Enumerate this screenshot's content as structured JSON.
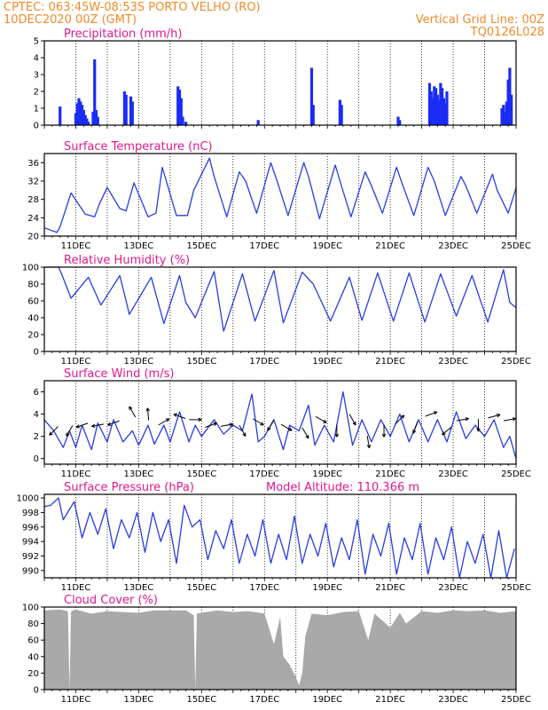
{
  "header": {
    "left_line1": "CPTEC:   063:45W-08:53S   PORTO VELHO (RO)",
    "left_line2": "10DEC2020 00Z (GMT)",
    "right_line1": "Vertical Grid Line: 00Z",
    "right_line2": "TQ0126L028"
  },
  "colors": {
    "header_text": "#f08a28",
    "panel_title": "#e0188c",
    "series_line": "#2a3ce0",
    "precip_bar": "#1a2cf5",
    "cloud_fill": "#a9a9a9",
    "wind_arrow": "#000000"
  },
  "chart_data": [
    {
      "type": "bar",
      "title": "Precipitation (mm/h)",
      "xlabel": "",
      "ylabel": "",
      "x_unit": "days since 10DEC2020 00Z",
      "xlim": [
        0,
        15
      ],
      "ylim": [
        0,
        5
      ],
      "yticks": [
        0,
        1,
        2,
        3,
        4,
        5
      ],
      "xtick_labels": [
        "11DEC",
        "13DEC",
        "15DEC",
        "17DEC",
        "19DEC",
        "21DEC",
        "23DEC",
        "25DEC"
      ],
      "x": [
        0.5,
        1.0,
        1.05,
        1.1,
        1.15,
        1.2,
        1.25,
        1.3,
        1.35,
        1.4,
        1.55,
        1.6,
        1.65,
        1.7,
        2.55,
        2.6,
        2.75,
        2.8,
        4.25,
        4.3,
        4.35,
        4.4,
        4.5,
        6.8,
        8.5,
        8.55,
        9.4,
        9.45,
        11.25,
        11.3,
        12.25,
        12.3,
        12.35,
        12.4,
        12.45,
        12.5,
        12.55,
        12.6,
        12.65,
        12.7,
        12.75,
        12.8,
        14.55,
        14.6,
        14.65,
        14.7,
        14.75,
        14.8,
        14.85
      ],
      "values": [
        1.1,
        0.7,
        1.3,
        1.6,
        1.4,
        1.2,
        0.9,
        0.6,
        0.4,
        0.2,
        0.8,
        3.9,
        0.9,
        0.5,
        2.0,
        1.8,
        1.7,
        1.4,
        2.3,
        2.1,
        1.6,
        0.5,
        0.2,
        0.3,
        3.4,
        1.2,
        1.5,
        1.2,
        0.5,
        0.3,
        2.5,
        2.0,
        1.6,
        2.3,
        2.2,
        1.8,
        1.5,
        2.5,
        2.2,
        1.6,
        1.3,
        2.0,
        1.0,
        1.2,
        0.8,
        1.4,
        2.7,
        3.4,
        1.8
      ]
    },
    {
      "type": "line",
      "title": "Surface Temperature (nC)",
      "xlabel": "",
      "ylabel": "",
      "x_unit": "days since 10DEC2020 00Z",
      "xlim": [
        0,
        15
      ],
      "ylim": [
        20,
        38
      ],
      "yticks": [
        20,
        24,
        28,
        32,
        36
      ],
      "xtick_labels": [
        "11DEC",
        "13DEC",
        "15DEC",
        "17DEC",
        "19DEC",
        "21DEC",
        "23DEC",
        "25DEC"
      ],
      "x": [
        0.0,
        0.4,
        0.5,
        0.85,
        1.3,
        1.6,
        1.75,
        2.0,
        2.4,
        2.6,
        2.85,
        3.3,
        3.55,
        3.75,
        4.2,
        4.55,
        4.75,
        5.25,
        5.4,
        5.8,
        6.2,
        6.4,
        6.75,
        7.2,
        7.4,
        7.75,
        8.25,
        8.4,
        8.75,
        9.25,
        9.4,
        9.75,
        10.2,
        10.4,
        10.75,
        11.2,
        11.4,
        11.75,
        12.2,
        12.4,
        12.75,
        13.25,
        13.4,
        13.75,
        14.25,
        14.4,
        14.75,
        15.0
      ],
      "values": [
        21.8,
        20.8,
        22.0,
        29.4,
        24.8,
        24.2,
        27.0,
        30.6,
        26.0,
        25.5,
        31.6,
        24.2,
        25.0,
        35.0,
        24.5,
        24.5,
        30.0,
        37.0,
        33.0,
        24.2,
        34.0,
        32.0,
        25.0,
        36.0,
        32.0,
        24.5,
        36.0,
        33.0,
        23.8,
        35.5,
        32.0,
        24.2,
        34.0,
        31.0,
        25.0,
        35.0,
        31.0,
        24.5,
        35.0,
        32.0,
        24.5,
        33.0,
        31.0,
        25.0,
        33.5,
        30.0,
        25.0,
        30.5
      ]
    },
    {
      "type": "line",
      "title": "Relative Humidity (%)",
      "xlabel": "",
      "ylabel": "",
      "x_unit": "days since 10DEC2020 00Z",
      "xlim": [
        0,
        15
      ],
      "ylim": [
        0,
        100
      ],
      "yticks": [
        0,
        20,
        40,
        60,
        80,
        100
      ],
      "xtick_labels": [
        "11DEC",
        "13DEC",
        "15DEC",
        "17DEC",
        "19DEC",
        "21DEC",
        "23DEC",
        "25DEC"
      ],
      "x": [
        0.0,
        0.45,
        0.55,
        0.85,
        1.4,
        1.8,
        2.4,
        2.6,
        2.7,
        3.4,
        3.8,
        4.3,
        4.5,
        4.8,
        5.4,
        5.7,
        6.3,
        6.7,
        7.3,
        7.6,
        8.2,
        8.55,
        9.1,
        9.7,
        10.1,
        10.6,
        11.1,
        11.6,
        12.1,
        12.6,
        13.1,
        13.6,
        14.1,
        14.6,
        14.8,
        15.0
      ],
      "values": [
        100,
        100,
        92,
        63,
        88,
        55,
        90,
        60,
        44,
        88,
        33,
        90,
        58,
        40,
        95,
        24,
        92,
        36,
        96,
        34,
        94,
        80,
        36,
        88,
        37,
        93,
        36,
        93,
        35,
        92,
        42,
        90,
        35,
        97,
        58,
        52
      ]
    },
    {
      "type": "line",
      "title": "Surface Wind (m/s)",
      "xlabel": "",
      "ylabel": "",
      "x_unit": "days since 10DEC2020 00Z",
      "xlim": [
        0,
        15
      ],
      "ylim": [
        -0.5,
        7
      ],
      "yticks": [
        0,
        2,
        4,
        6
      ],
      "xtick_labels": [
        "11DEC",
        "13DEC",
        "15DEC",
        "17DEC",
        "19DEC",
        "21DEC",
        "23DEC",
        "25DEC"
      ],
      "x": [
        0.0,
        0.3,
        0.6,
        0.8,
        1.0,
        1.2,
        1.5,
        1.7,
        2.0,
        2.2,
        2.5,
        2.8,
        3.0,
        3.3,
        3.5,
        3.8,
        4.0,
        4.3,
        4.6,
        4.8,
        5.0,
        5.4,
        5.7,
        6.0,
        6.3,
        6.6,
        6.8,
        7.0,
        7.3,
        7.6,
        7.8,
        8.1,
        8.4,
        8.6,
        8.9,
        9.2,
        9.5,
        9.8,
        10.1,
        10.4,
        10.7,
        11.0,
        11.3,
        11.6,
        11.9,
        12.2,
        12.5,
        12.8,
        13.1,
        13.4,
        13.7,
        14.0,
        14.3,
        14.6,
        14.8,
        15.0
      ],
      "values": [
        3.5,
        2.5,
        1.0,
        2.5,
        1.0,
        3.0,
        0.8,
        3.2,
        1.5,
        3.5,
        1.5,
        2.5,
        1.2,
        3.0,
        1.3,
        3.0,
        1.5,
        4.2,
        1.5,
        3.0,
        2.0,
        3.5,
        2.2,
        3.0,
        2.5,
        5.8,
        1.5,
        2.0,
        3.5,
        0.8,
        3.0,
        2.5,
        4.8,
        1.2,
        3.0,
        1.5,
        6.0,
        1.2,
        3.5,
        1.5,
        3.5,
        2.0,
        4.0,
        1.5,
        3.5,
        1.5,
        3.5,
        1.5,
        4.2,
        1.8,
        3.0,
        2.0,
        3.5,
        1.0,
        2.0,
        0.0
      ],
      "arrows": [
        {
          "x": 0.3,
          "y": 2.5,
          "angle": 225
        },
        {
          "x": 0.8,
          "y": 2.5,
          "angle": 240
        },
        {
          "x": 1.2,
          "y": 3.0,
          "angle": 200
        },
        {
          "x": 1.7,
          "y": 3.0,
          "angle": 190
        },
        {
          "x": 2.2,
          "y": 3.2,
          "angle": 200
        },
        {
          "x": 2.8,
          "y": 4.2,
          "angle": 120
        },
        {
          "x": 3.3,
          "y": 4.0,
          "angle": 95
        },
        {
          "x": 3.8,
          "y": 3.3,
          "angle": 30
        },
        {
          "x": 4.3,
          "y": 3.8,
          "angle": 160
        },
        {
          "x": 4.8,
          "y": 3.5,
          "angle": 0
        },
        {
          "x": 5.3,
          "y": 3.0,
          "angle": 20
        },
        {
          "x": 5.8,
          "y": 3.0,
          "angle": 10
        },
        {
          "x": 6.3,
          "y": 2.5,
          "angle": 300
        },
        {
          "x": 6.8,
          "y": 3.3,
          "angle": 330
        },
        {
          "x": 7.2,
          "y": 3.0,
          "angle": 240
        },
        {
          "x": 7.7,
          "y": 2.8,
          "angle": 330
        },
        {
          "x": 8.3,
          "y": 2.3,
          "angle": 300
        },
        {
          "x": 8.8,
          "y": 3.5,
          "angle": 330
        },
        {
          "x": 9.3,
          "y": 2.5,
          "angle": 270
        },
        {
          "x": 9.8,
          "y": 3.5,
          "angle": 300
        },
        {
          "x": 10.3,
          "y": 1.5,
          "angle": 280
        },
        {
          "x": 10.8,
          "y": 2.5,
          "angle": 270
        },
        {
          "x": 11.3,
          "y": 3.5,
          "angle": 45
        },
        {
          "x": 11.8,
          "y": 2.8,
          "angle": 250
        },
        {
          "x": 12.3,
          "y": 4.0,
          "angle": 20
        },
        {
          "x": 12.8,
          "y": 2.5,
          "angle": 220
        },
        {
          "x": 13.3,
          "y": 3.5,
          "angle": 10
        },
        {
          "x": 13.8,
          "y": 3.0,
          "angle": 270
        },
        {
          "x": 14.3,
          "y": 3.8,
          "angle": 15
        },
        {
          "x": 14.8,
          "y": 3.5,
          "angle": 10
        }
      ]
    },
    {
      "type": "line",
      "title": "Surface Pressure (hPa)",
      "annotation": "Model Altitude: 110.366 m",
      "xlabel": "",
      "ylabel": "",
      "x_unit": "days since 10DEC2020 00Z",
      "xlim": [
        0,
        15
      ],
      "ylim": [
        989,
        1000.5
      ],
      "yticks": [
        990,
        992,
        994,
        996,
        998,
        1000
      ],
      "xtick_labels": [
        "11DEC",
        "13DEC",
        "15DEC",
        "17DEC",
        "19DEC",
        "21DEC",
        "23DEC",
        "25DEC"
      ],
      "x": [
        0.0,
        0.2,
        0.45,
        0.6,
        0.95,
        1.2,
        1.45,
        1.7,
        1.95,
        2.2,
        2.45,
        2.7,
        2.95,
        3.2,
        3.45,
        3.7,
        3.95,
        4.2,
        4.45,
        4.7,
        4.95,
        5.2,
        5.45,
        5.7,
        5.95,
        6.2,
        6.45,
        6.7,
        6.95,
        7.2,
        7.45,
        7.7,
        7.95,
        8.2,
        8.45,
        8.7,
        8.95,
        9.2,
        9.45,
        9.7,
        9.95,
        10.2,
        10.45,
        10.7,
        10.95,
        11.2,
        11.45,
        11.7,
        11.95,
        12.2,
        12.45,
        12.7,
        12.95,
        13.2,
        13.45,
        13.7,
        13.95,
        14.2,
        14.45,
        14.7,
        14.95
      ],
      "values": [
        998.8,
        999.0,
        1000.0,
        997.0,
        999.5,
        994.5,
        998.0,
        995.0,
        998.5,
        993.0,
        997.0,
        994.5,
        998.0,
        992.5,
        998.0,
        994.0,
        997.0,
        991.0,
        999.0,
        996.0,
        997.0,
        991.5,
        995.5,
        993.0,
        997.0,
        991.0,
        995.0,
        992.0,
        997.0,
        991.0,
        995.0,
        991.5,
        997.5,
        991.0,
        995.0,
        992.0,
        996.5,
        990.5,
        994.5,
        991.5,
        997.0,
        989.5,
        995.0,
        992.0,
        996.5,
        989.5,
        994.5,
        991.5,
        996.5,
        989.5,
        994.5,
        991.5,
        996.0,
        989.0,
        994.0,
        991.0,
        995.0,
        989.0,
        995.5,
        989.0,
        993.0
      ]
    },
    {
      "type": "area",
      "title": "Cloud Cover (%)",
      "xlabel": "",
      "ylabel": "",
      "x_unit": "days since 10DEC2020 00Z",
      "xlim": [
        0,
        15
      ],
      "ylim": [
        0,
        100
      ],
      "yticks": [
        0,
        20,
        40,
        60,
        80,
        100
      ],
      "xtick_labels": [
        "11DEC",
        "13DEC",
        "15DEC",
        "17DEC",
        "19DEC",
        "21DEC",
        "23DEC",
        "25DEC"
      ],
      "x": [
        0.0,
        0.5,
        0.75,
        0.8,
        0.85,
        1.0,
        1.5,
        2.0,
        2.5,
        3.0,
        3.5,
        4.0,
        4.5,
        4.75,
        4.8,
        4.85,
        5.0,
        5.5,
        6.0,
        6.5,
        7.0,
        7.3,
        7.5,
        7.6,
        7.8,
        8.0,
        8.1,
        8.2,
        8.3,
        8.5,
        9.0,
        9.5,
        10.0,
        10.3,
        10.5,
        11.0,
        11.3,
        11.5,
        12.0,
        12.5,
        13.0,
        13.5,
        14.0,
        14.5,
        15.0
      ],
      "values": [
        96,
        97,
        95,
        0,
        95,
        97,
        92,
        95,
        94,
        93,
        96,
        96,
        96,
        90,
        0,
        92,
        93,
        96,
        94,
        95,
        92,
        55,
        88,
        40,
        30,
        15,
        5,
        20,
        65,
        92,
        90,
        94,
        95,
        60,
        92,
        75,
        93,
        80,
        95,
        93,
        96,
        95,
        96,
        93,
        95
      ]
    }
  ]
}
